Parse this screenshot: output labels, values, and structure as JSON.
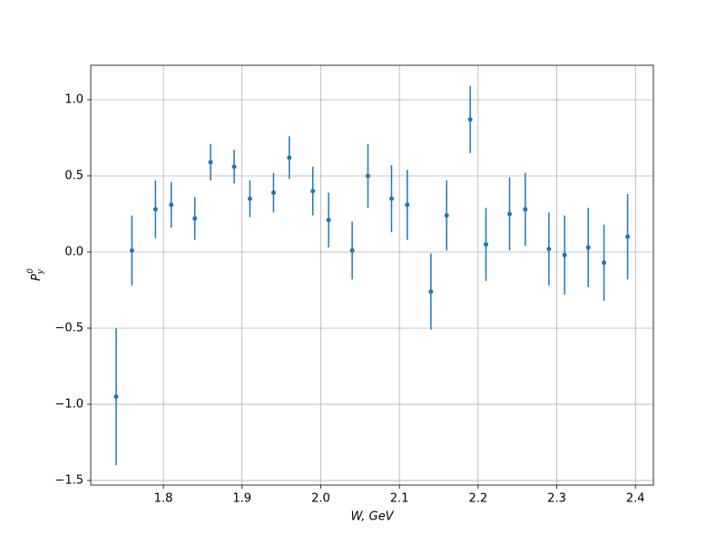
{
  "chart_data": {
    "type": "errorbar",
    "xlabel": "W, GeV",
    "ylabel": {
      "base": "P",
      "sub": "y",
      "sup": "0"
    },
    "color": "#1f77b4",
    "grid": true,
    "xlim": [
      1.7077,
      2.4228
    ],
    "ylim": [
      -1.53,
      1.226
    ],
    "xticks": [
      1.8,
      1.9,
      {
        "value": 2.0,
        "label": "2.0"
      },
      2.1,
      2.2,
      2.3,
      2.4
    ],
    "yticks": [
      {
        "value": -1.5,
        "label": "−1.5"
      },
      {
        "value": -1.0,
        "label": "−1.0"
      },
      {
        "value": -0.5,
        "label": "−0.5"
      },
      {
        "value": 0.0,
        "label": "0.0"
      },
      {
        "value": 0.5,
        "label": "0.5"
      },
      {
        "value": 1.0,
        "label": "1.0"
      }
    ],
    "x": [
      1.74,
      1.76,
      1.79,
      1.81,
      1.84,
      1.86,
      1.89,
      1.91,
      1.94,
      1.96,
      1.99,
      2.01,
      2.04,
      2.06,
      2.09,
      2.11,
      2.14,
      2.16,
      2.19,
      2.21,
      2.24,
      2.26,
      2.29,
      2.31,
      2.34,
      2.36,
      2.39
    ],
    "values": [
      -0.95,
      0.01,
      0.28,
      0.31,
      0.22,
      0.59,
      0.56,
      0.35,
      0.39,
      0.62,
      0.4,
      0.21,
      0.01,
      0.5,
      0.35,
      0.31,
      -0.26,
      0.24,
      0.87,
      0.05,
      0.25,
      0.28,
      0.02,
      -0.02,
      0.03,
      -0.07,
      0.1
    ],
    "errors": [
      0.45,
      0.23,
      0.19,
      0.15,
      0.14,
      0.12,
      0.11,
      0.12,
      0.13,
      0.14,
      0.16,
      0.18,
      0.19,
      0.21,
      0.22,
      0.23,
      0.25,
      0.23,
      0.22,
      0.24,
      0.24,
      0.24,
      0.24,
      0.26,
      0.26,
      0.25,
      0.28
    ]
  }
}
